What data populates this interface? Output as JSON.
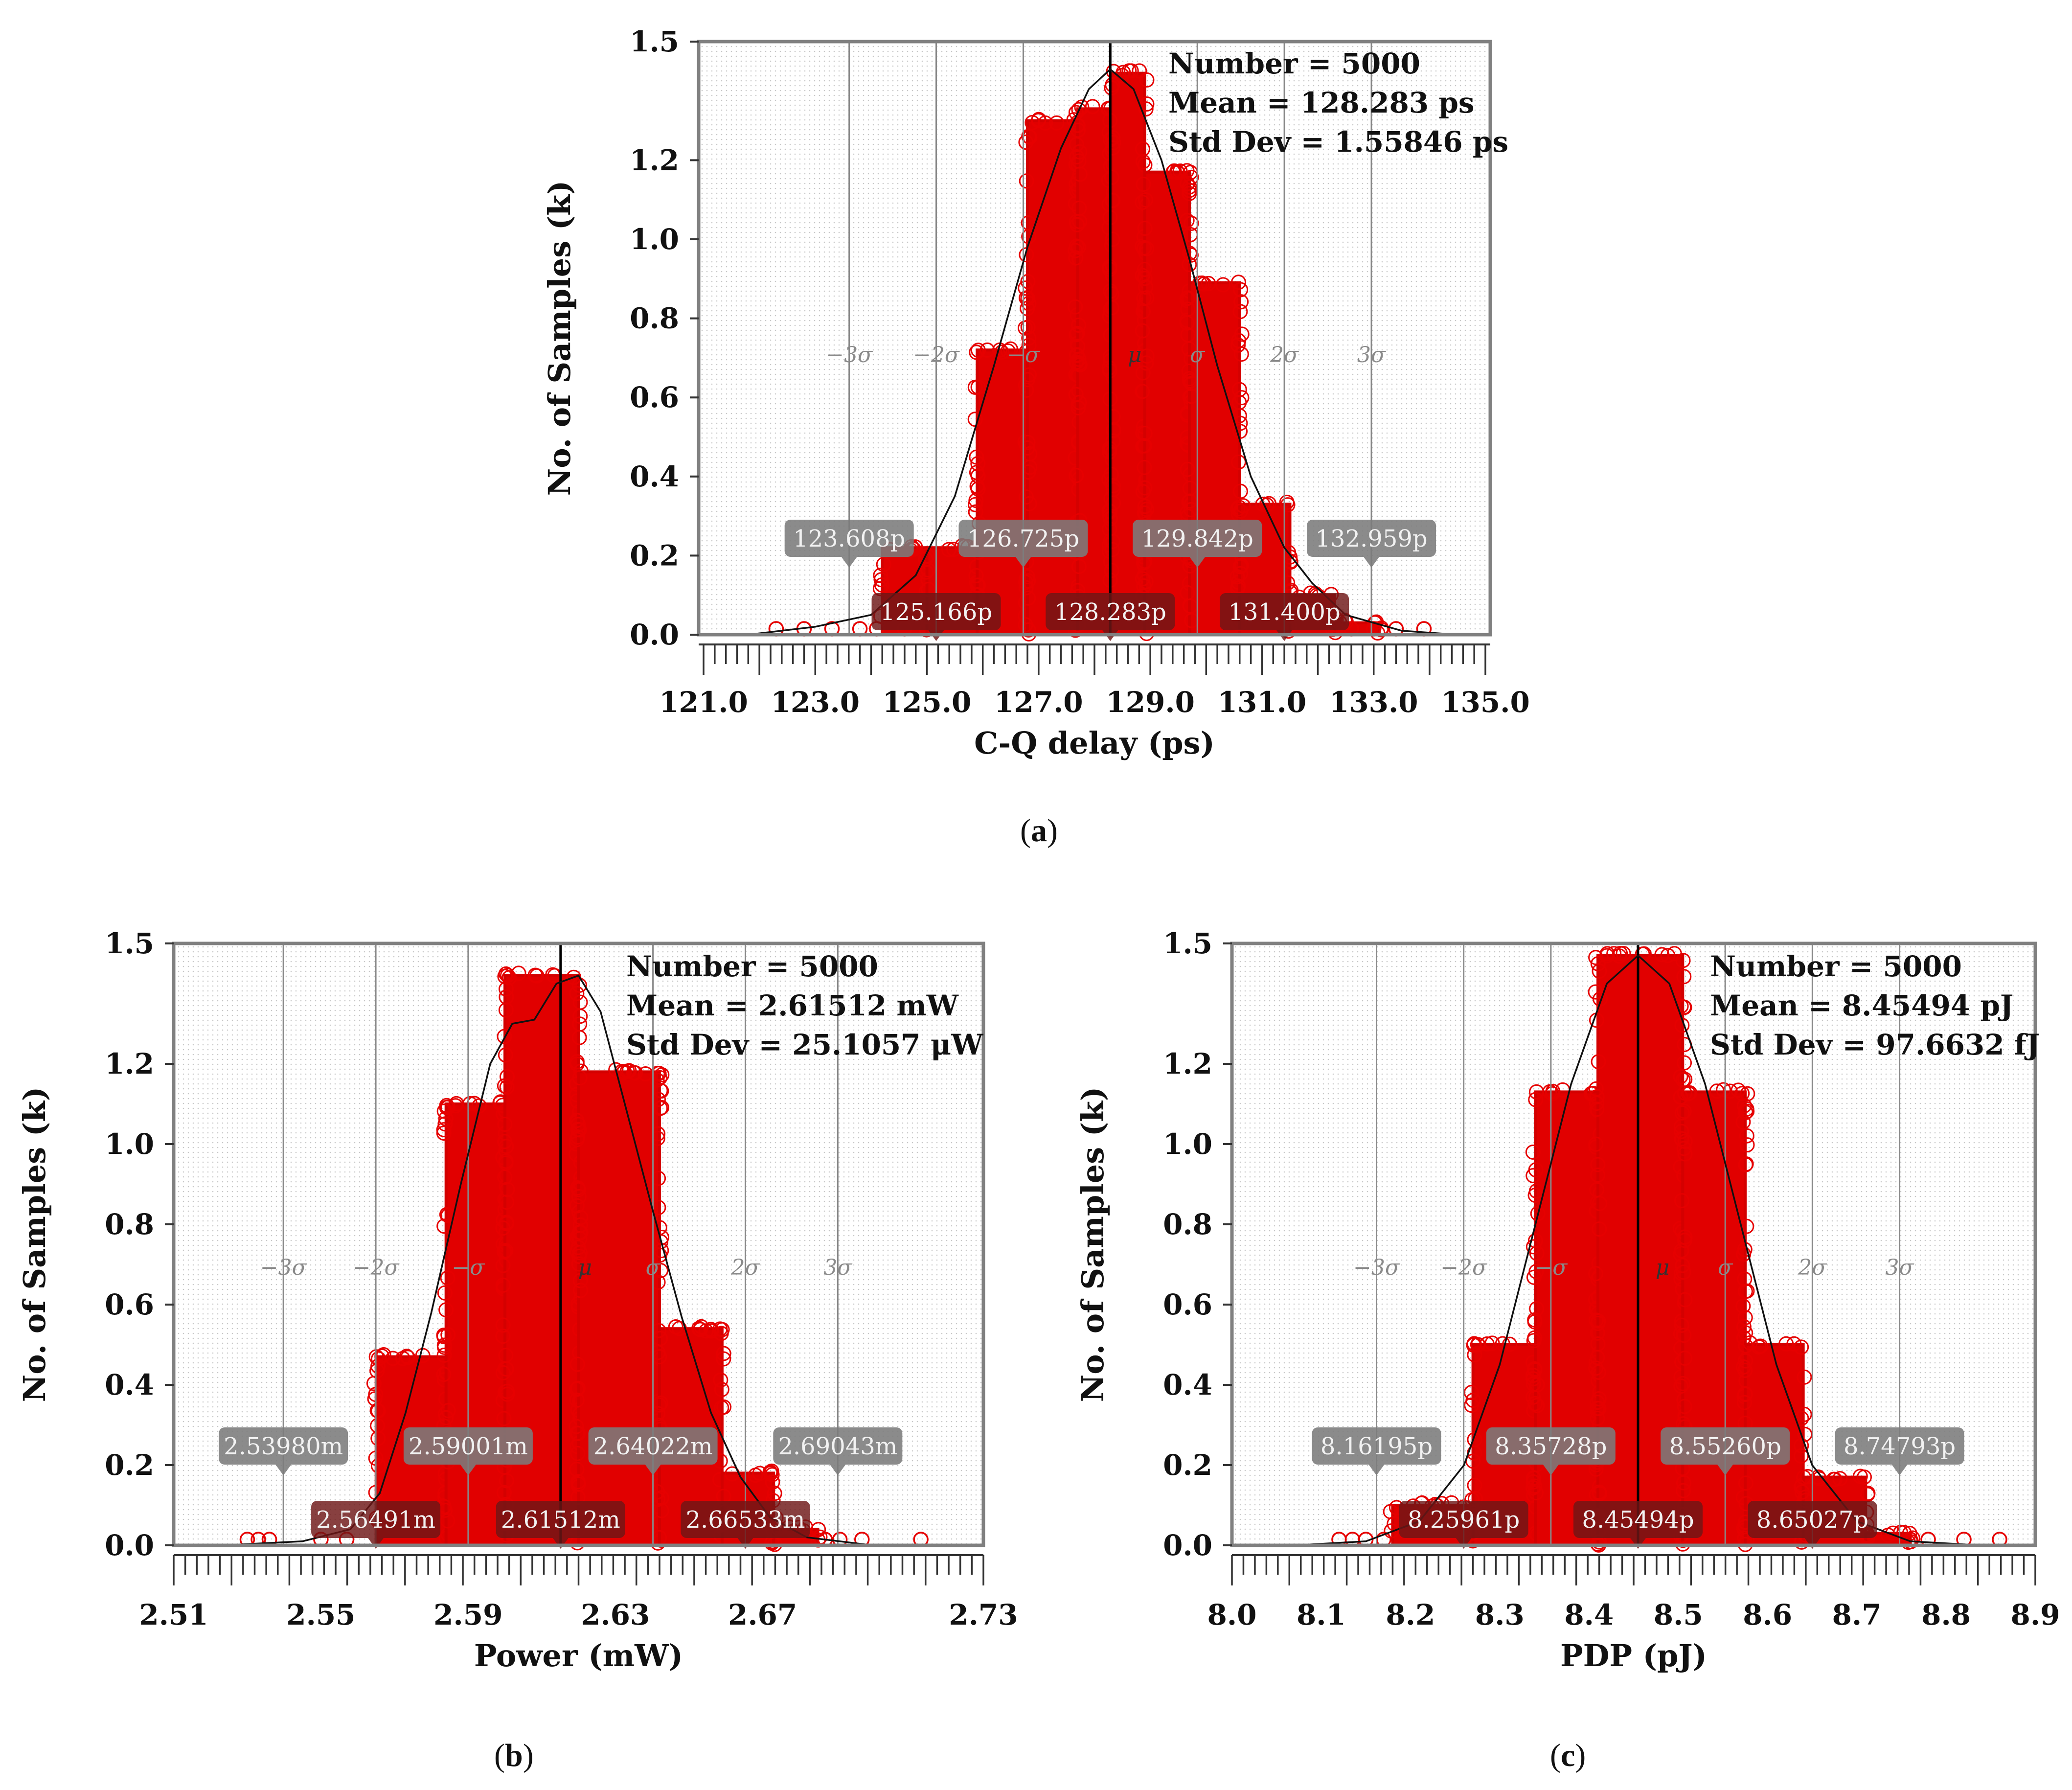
{
  "panels": [
    {
      "label": "a",
      "label_full": "(a)",
      "chart_data": {
        "type": "scatter-histogram",
        "xlabel": "C-Q delay (ps)",
        "ylabel": "No. of Samples (k)",
        "xlim": [
          121.0,
          135.0
        ],
        "ylim": [
          0.0,
          1.5
        ],
        "x_ticks": [
          "121.0",
          "123.0",
          "125.0",
          "127.0",
          "129.0",
          "131.0",
          "133.0",
          "135.0"
        ],
        "y_ticks": [
          "0.0",
          "0.2",
          "0.4",
          "0.6",
          "0.8",
          "1.0",
          "1.2",
          "1.5"
        ],
        "stats": [
          "Number = 5000",
          "Mean = 128.283 ps",
          "Std Dev = 1.55846 ps"
        ],
        "mean": 128.283,
        "std": 1.55846,
        "sigma_markers": [
          {
            "label": "−3σ",
            "value": 123.608
          },
          {
            "label": "−2σ",
            "value": 125.166
          },
          {
            "label": "−σ",
            "value": 126.725
          },
          {
            "label": "μ",
            "value": 128.283
          },
          {
            "label": "σ",
            "value": 129.842
          },
          {
            "label": "2σ",
            "value": 131.4
          },
          {
            "label": "3σ",
            "value": 132.959
          }
        ],
        "value_tags": [
          "123.608p",
          "125.166p",
          "126.725p",
          "128.283p",
          "129.842p",
          "131.400p",
          "132.959p"
        ],
        "bins": [
          {
            "x0": 124.2,
            "x1": 125.0,
            "h": 0.22
          },
          {
            "x0": 125.0,
            "x1": 125.9,
            "h": 0.22
          },
          {
            "x0": 125.9,
            "x1": 126.8,
            "h": 0.72
          },
          {
            "x0": 126.8,
            "x1": 127.7,
            "h": 1.3
          },
          {
            "x0": 127.7,
            "x1": 128.3,
            "h": 1.33
          },
          {
            "x0": 128.3,
            "x1": 128.9,
            "h": 1.42
          },
          {
            "x0": 128.9,
            "x1": 129.7,
            "h": 1.17
          },
          {
            "x0": 129.7,
            "x1": 130.6,
            "h": 0.89
          },
          {
            "x0": 130.6,
            "x1": 131.5,
            "h": 0.33
          },
          {
            "x0": 131.5,
            "x1": 132.3,
            "h": 0.1
          },
          {
            "x0": 132.3,
            "x1": 133.1,
            "h": 0.03
          }
        ],
        "tails": [
          122.3,
          122.8,
          123.3,
          123.8,
          124.1,
          124.6,
          132.6,
          133.0,
          133.4,
          133.9
        ],
        "curve": [
          [
            121.8,
            0.0
          ],
          [
            123.0,
            0.02
          ],
          [
            124.0,
            0.05
          ],
          [
            124.8,
            0.15
          ],
          [
            125.5,
            0.35
          ],
          [
            126.2,
            0.68
          ],
          [
            126.8,
            0.98
          ],
          [
            127.4,
            1.23
          ],
          [
            127.9,
            1.38
          ],
          [
            128.283,
            1.43
          ],
          [
            128.7,
            1.38
          ],
          [
            129.2,
            1.2
          ],
          [
            129.7,
            0.95
          ],
          [
            130.2,
            0.68
          ],
          [
            130.8,
            0.4
          ],
          [
            131.4,
            0.22
          ],
          [
            131.9,
            0.13
          ],
          [
            132.5,
            0.05
          ],
          [
            133.5,
            0.01
          ],
          [
            134.5,
            0.0
          ]
        ]
      }
    },
    {
      "label": "b",
      "label_full": "(b)",
      "chart_data": {
        "type": "scatter-histogram",
        "xlabel": "Power (mW)",
        "ylabel": "No. of Samples (k)",
        "xlim": [
          2.51,
          2.73
        ],
        "ylim": [
          0.0,
          1.5
        ],
        "x_ticks": [
          "2.51",
          "2.55",
          "2.59",
          "2.63",
          "2.67",
          "2.73"
        ],
        "x_tick_values": [
          2.51,
          2.55,
          2.59,
          2.63,
          2.67,
          2.73
        ],
        "y_ticks": [
          "0.0",
          "0.2",
          "0.4",
          "0.6",
          "0.8",
          "1.0",
          "1.2",
          "1.5"
        ],
        "stats": [
          "Number = 5000",
          "Mean = 2.61512 mW",
          "Std Dev = 25.1057 μW"
        ],
        "mean": 2.61512,
        "std": 0.0251057,
        "sigma_markers": [
          {
            "label": "−3σ",
            "value": 2.5398
          },
          {
            "label": "−2σ",
            "value": 2.56491
          },
          {
            "label": "−σ",
            "value": 2.59001
          },
          {
            "label": "μ",
            "value": 2.61512
          },
          {
            "label": "σ",
            "value": 2.64022
          },
          {
            "label": "2σ",
            "value": 2.66533
          },
          {
            "label": "3σ",
            "value": 2.69043
          }
        ],
        "value_tags": [
          "2.53980m",
          "2.56491m",
          "2.59001m",
          "2.61512m",
          "2.64022m",
          "2.66533m",
          "2.69043m"
        ],
        "bins": [
          {
            "x0": 2.565,
            "x1": 2.584,
            "h": 0.47
          },
          {
            "x0": 2.584,
            "x1": 2.6,
            "h": 1.1
          },
          {
            "x0": 2.6,
            "x1": 2.62,
            "h": 1.42
          },
          {
            "x0": 2.62,
            "x1": 2.642,
            "h": 1.18
          },
          {
            "x0": 2.642,
            "x1": 2.659,
            "h": 0.54
          },
          {
            "x0": 2.659,
            "x1": 2.673,
            "h": 0.18
          },
          {
            "x0": 2.673,
            "x1": 2.685,
            "h": 0.04
          }
        ],
        "tails": [
          2.53,
          2.533,
          2.536,
          2.55,
          2.557,
          2.687,
          2.691,
          2.697,
          2.713
        ],
        "curve": [
          [
            2.523,
            0.0
          ],
          [
            2.545,
            0.01
          ],
          [
            2.558,
            0.04
          ],
          [
            2.566,
            0.13
          ],
          [
            2.573,
            0.33
          ],
          [
            2.58,
            0.58
          ],
          [
            2.588,
            0.9
          ],
          [
            2.596,
            1.2
          ],
          [
            2.602,
            1.3
          ],
          [
            2.608,
            1.31
          ],
          [
            2.614,
            1.4
          ],
          [
            2.62,
            1.42
          ],
          [
            2.626,
            1.33
          ],
          [
            2.632,
            1.12
          ],
          [
            2.64,
            0.84
          ],
          [
            2.648,
            0.57
          ],
          [
            2.656,
            0.33
          ],
          [
            2.664,
            0.17
          ],
          [
            2.672,
            0.07
          ],
          [
            2.682,
            0.02
          ],
          [
            2.7,
            0.0
          ]
        ]
      }
    },
    {
      "label": "c",
      "label_full": "(c)",
      "chart_data": {
        "type": "scatter-histogram",
        "xlabel": "PDP (pJ)",
        "ylabel": "No. of Samples (k)",
        "xlim": [
          8.0,
          8.9
        ],
        "ylim": [
          0.0,
          1.5
        ],
        "x_ticks": [
          "8.0",
          "8.1",
          "8.2",
          "8.3",
          "8.4",
          "8.5",
          "8.6",
          "8.7",
          "8.8",
          "8.9"
        ],
        "x_tick_values": [
          8.0,
          8.1,
          8.2,
          8.3,
          8.4,
          8.5,
          8.6,
          8.7,
          8.8,
          8.9
        ],
        "y_ticks": [
          "0.0",
          "0.2",
          "0.4",
          "0.6",
          "0.8",
          "1.0",
          "1.2",
          "1.5"
        ],
        "stats": [
          "Number = 5000",
          "Mean = 8.45494 pJ",
          "Std Dev = 97.6632 fJ"
        ],
        "mean": 8.45494,
        "std": 0.0976632,
        "sigma_markers": [
          {
            "label": "−3σ",
            "value": 8.16195
          },
          {
            "label": "−2σ",
            "value": 8.25961
          },
          {
            "label": "−σ",
            "value": 8.35728
          },
          {
            "label": "μ",
            "value": 8.45494
          },
          {
            "label": "σ",
            "value": 8.5526
          },
          {
            "label": "2σ",
            "value": 8.65027
          },
          {
            "label": "3σ",
            "value": 8.74793
          }
        ],
        "value_tags": [
          "8.16195p",
          "8.25961p",
          "8.35728p",
          "8.45494p",
          "8.55260p",
          "8.65027p",
          "8.74793p"
        ],
        "bins": [
          {
            "x0": 8.18,
            "x1": 8.27,
            "h": 0.1
          },
          {
            "x0": 8.27,
            "x1": 8.34,
            "h": 0.5
          },
          {
            "x0": 8.34,
            "x1": 8.41,
            "h": 1.13
          },
          {
            "x0": 8.41,
            "x1": 8.505,
            "h": 1.47
          },
          {
            "x0": 8.505,
            "x1": 8.575,
            "h": 1.13
          },
          {
            "x0": 8.575,
            "x1": 8.64,
            "h": 0.5
          },
          {
            "x0": 8.64,
            "x1": 8.71,
            "h": 0.17
          },
          {
            "x0": 8.71,
            "x1": 8.76,
            "h": 0.03
          }
        ],
        "tails": [
          8.12,
          8.135,
          8.15,
          8.17,
          8.76,
          8.78,
          8.82,
          8.86
        ],
        "curve": [
          [
            8.07,
            0.0
          ],
          [
            8.15,
            0.01
          ],
          [
            8.21,
            0.06
          ],
          [
            8.26,
            0.2
          ],
          [
            8.3,
            0.45
          ],
          [
            8.34,
            0.8
          ],
          [
            8.38,
            1.15
          ],
          [
            8.42,
            1.4
          ],
          [
            8.455,
            1.47
          ],
          [
            8.49,
            1.4
          ],
          [
            8.53,
            1.15
          ],
          [
            8.57,
            0.8
          ],
          [
            8.61,
            0.45
          ],
          [
            8.65,
            0.2
          ],
          [
            8.7,
            0.06
          ],
          [
            8.76,
            0.01
          ],
          [
            8.84,
            0.0
          ]
        ]
      }
    }
  ]
}
